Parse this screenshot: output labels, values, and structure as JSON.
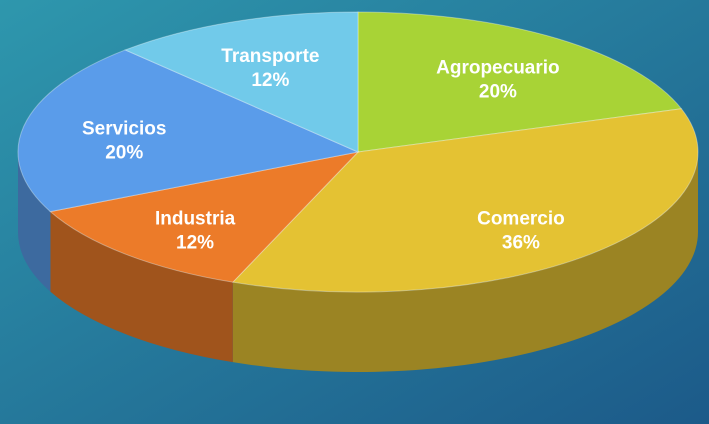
{
  "chart_data": {
    "type": "pie",
    "categories": [
      "Agropecuario",
      "Comercio",
      "Industria",
      "Servicios",
      "Transporte"
    ],
    "values": [
      20,
      36,
      12,
      20,
      12
    ],
    "value_labels": [
      "20%",
      "36%",
      "12%",
      "20%",
      "12%"
    ],
    "colors": [
      "#a8d336",
      "#e4c233",
      "#ec7b29",
      "#5a9cea",
      "#71caea"
    ]
  }
}
